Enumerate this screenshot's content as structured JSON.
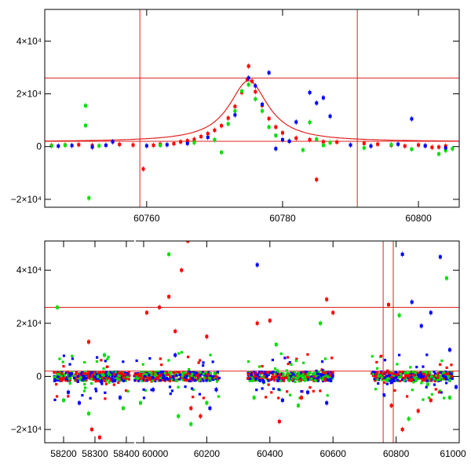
{
  "chart_data": [
    {
      "id": "top",
      "type": "scatter",
      "xlim": [
        60745,
        60806
      ],
      "ylim": [
        -23000,
        52000
      ],
      "x_ticks": [
        60760,
        60780,
        60800
      ],
      "x_tick_labels": [
        "60760",
        "60780",
        "60800"
      ],
      "y_ticks": [
        -20000,
        0,
        20000,
        40000
      ],
      "y_tick_labels": [
        "−2×10⁴",
        "0",
        "2×10⁴",
        "4×10⁴"
      ],
      "vertical_lines": [
        60759,
        60791
      ],
      "horizontal_lines": [
        2000,
        26000
      ],
      "model_curve": {
        "type": "lorentzian_peak",
        "center": 60775,
        "baseline": 1800,
        "peak": 25000,
        "halfwidth": 3.5
      },
      "series": [
        {
          "color": "#ff0000",
          "points": [
            [
              60746,
              400
            ],
            [
              60748,
              600
            ],
            [
              60750,
              700
            ],
            [
              60752,
              400
            ],
            [
              60756,
              800
            ],
            [
              60758,
              600
            ],
            [
              60759.5,
              -8500
            ],
            [
              60761,
              500
            ],
            [
              60762,
              900
            ],
            [
              60764,
              1100
            ],
            [
              60765,
              1800
            ],
            [
              60766,
              2200
            ],
            [
              60767,
              2700
            ],
            [
              60768,
              3800
            ],
            [
              60769,
              4900
            ],
            [
              60770,
              6200
            ],
            [
              60771,
              7900
            ],
            [
              60772,
              10800
            ],
            [
              60773,
              15200
            ],
            [
              60774,
              20500
            ],
            [
              60774.8,
              25500
            ],
            [
              60775,
              30500
            ],
            [
              60775.5,
              24800
            ],
            [
              60776,
              20800
            ],
            [
              60777,
              15600
            ],
            [
              60778,
              10600
            ],
            [
              60779,
              7400
            ],
            [
              60780,
              5200
            ],
            [
              60782,
              3200
            ],
            [
              60784,
              2600
            ],
            [
              60785,
              -12500
            ],
            [
              60786,
              1800
            ],
            [
              60788,
              1700
            ],
            [
              60792,
              1200
            ],
            [
              60794,
              900
            ],
            [
              60796,
              500
            ],
            [
              60798,
              200
            ],
            [
              60800,
              600
            ],
            [
              60801,
              300
            ],
            [
              60802,
              -300
            ],
            [
              60803,
              -200
            ],
            [
              60804,
              200
            ]
          ]
        },
        {
          "color": "#00dd00",
          "points": [
            [
              60746,
              300
            ],
            [
              60748,
              500
            ],
            [
              60751,
              15500
            ],
            [
              60751,
              8000
            ],
            [
              60751.5,
              -19500
            ],
            [
              60753,
              300
            ],
            [
              60762,
              500
            ],
            [
              60767,
              1500
            ],
            [
              60770,
              2600
            ],
            [
              60771,
              -2200
            ],
            [
              60772,
              8600
            ],
            [
              60773,
              13500
            ],
            [
              60774,
              21000
            ],
            [
              60775,
              23500
            ],
            [
              60776,
              18000
            ],
            [
              60777,
              13500
            ],
            [
              60778,
              7400
            ],
            [
              60779,
              4200
            ],
            [
              60781,
              2100
            ],
            [
              60783,
              -1300
            ],
            [
              60784,
              9200
            ],
            [
              60785,
              2800
            ],
            [
              60786,
              500
            ],
            [
              60787,
              1500
            ],
            [
              60792,
              -500
            ],
            [
              60796,
              700
            ],
            [
              60799,
              -1000
            ],
            [
              60803,
              -2800
            ],
            [
              60804,
              -1500
            ],
            [
              60805,
              -800
            ]
          ]
        },
        {
          "color": "#0000ff",
          "points": [
            [
              60747,
              200
            ],
            [
              60749,
              400
            ],
            [
              60752,
              -200
            ],
            [
              60754,
              500
            ],
            [
              60755,
              1800
            ],
            [
              60760,
              300
            ],
            [
              60763,
              700
            ],
            [
              60766,
              1200
            ],
            [
              60769,
              3500
            ],
            [
              60773,
              12000
            ],
            [
              60775,
              26000
            ],
            [
              60776,
              23000
            ],
            [
              60777,
              16000
            ],
            [
              60778,
              28000
            ],
            [
              60779,
              -800
            ],
            [
              60780,
              2600
            ],
            [
              60781,
              2000
            ],
            [
              60782,
              9300
            ],
            [
              60784,
              20500
            ],
            [
              60785,
              16500
            ],
            [
              60786,
              18500
            ],
            [
              60787,
              11500
            ],
            [
              60790,
              600
            ],
            [
              60793,
              200
            ],
            [
              60797,
              900
            ],
            [
              60799,
              10500
            ],
            [
              60801,
              300
            ],
            [
              60804,
              -500
            ]
          ]
        }
      ]
    },
    {
      "id": "bottom",
      "type": "scatter",
      "xlim": [
        58140,
        61000
      ],
      "x_broken_at": 58420,
      "ylim": [
        -25000,
        51000
      ],
      "x_ticks": [
        58200,
        58300,
        58400,
        60000,
        60200,
        60400,
        60600,
        60800,
        61000
      ],
      "x_tick_labels": [
        "58200",
        "58300",
        "58400",
        "60000",
        "60200",
        "60400",
        "60600",
        "60800",
        "61000"
      ],
      "y_ticks": [
        -20000,
        0,
        20000,
        40000
      ],
      "y_tick_labels": [
        "−2×10⁴",
        "0",
        "2×10⁴",
        "4×10⁴"
      ],
      "vertical_lines": [
        60759,
        60791
      ],
      "horizontal_lines": [
        2000,
        26000
      ],
      "segments": [
        [
          58170,
          58410
        ],
        [
          59970,
          60240
        ],
        [
          60330,
          60600
        ],
        [
          60720,
          60980
        ]
      ],
      "series": [
        {
          "color": "#ff0000",
          "points": [
            [
              58290,
              -20000
            ],
            [
              58315,
              -23000
            ],
            [
              58280,
              13000
            ],
            [
              60010,
              24000
            ],
            [
              60050,
              26000
            ],
            [
              60080,
              30000
            ],
            [
              60120,
              40000
            ],
            [
              60140,
              51000
            ],
            [
              60150,
              -12000
            ],
            [
              60180,
              -15000
            ],
            [
              60100,
              17000
            ],
            [
              60200,
              15000
            ],
            [
              60360,
              20000
            ],
            [
              60400,
              21000
            ],
            [
              60430,
              -17000
            ],
            [
              60500,
              -8000
            ],
            [
              60580,
              29000
            ],
            [
              60600,
              24000
            ],
            [
              60776,
              27000
            ],
            [
              60785,
              -11000
            ],
            [
              60820,
              -20000
            ],
            [
              60870,
              -13000
            ],
            [
              60910,
              -9000
            ]
          ]
        },
        {
          "color": "#00dd00",
          "points": [
            [
              58180,
              26000
            ],
            [
              58200,
              -9000
            ],
            [
              58280,
              -14000
            ],
            [
              58330,
              8000
            ],
            [
              58390,
              -12000
            ],
            [
              59990,
              -10000
            ],
            [
              60080,
              46000
            ],
            [
              60110,
              -15000
            ],
            [
              60150,
              -18000
            ],
            [
              60200,
              -10000
            ],
            [
              60350,
              -8000
            ],
            [
              60420,
              12000
            ],
            [
              60490,
              -11000
            ],
            [
              60560,
              20000
            ],
            [
              60810,
              23000
            ],
            [
              60840,
              -16000
            ],
            [
              60900,
              -3000
            ],
            [
              60960,
              37000
            ],
            [
              60970,
              -8000
            ]
          ]
        },
        {
          "color": "#0000ff",
          "points": [
            [
              58215,
              -6000
            ],
            [
              58250,
              -10000
            ],
            [
              58320,
              -2000
            ],
            [
              58380,
              -8000
            ],
            [
              60030,
              -5000
            ],
            [
              60100,
              8000
            ],
            [
              60210,
              -12000
            ],
            [
              60230,
              -5000
            ],
            [
              60360,
              42000
            ],
            [
              60380,
              -2000
            ],
            [
              60440,
              -9000
            ],
            [
              60520,
              -6000
            ],
            [
              60580,
              -10000
            ],
            [
              60820,
              46000
            ],
            [
              60850,
              28000
            ],
            [
              60880,
              19000
            ],
            [
              60910,
              24000
            ],
            [
              60940,
              45000
            ],
            [
              60970,
              10000
            ],
            [
              60990,
              -4000
            ]
          ]
        }
      ]
    }
  ]
}
